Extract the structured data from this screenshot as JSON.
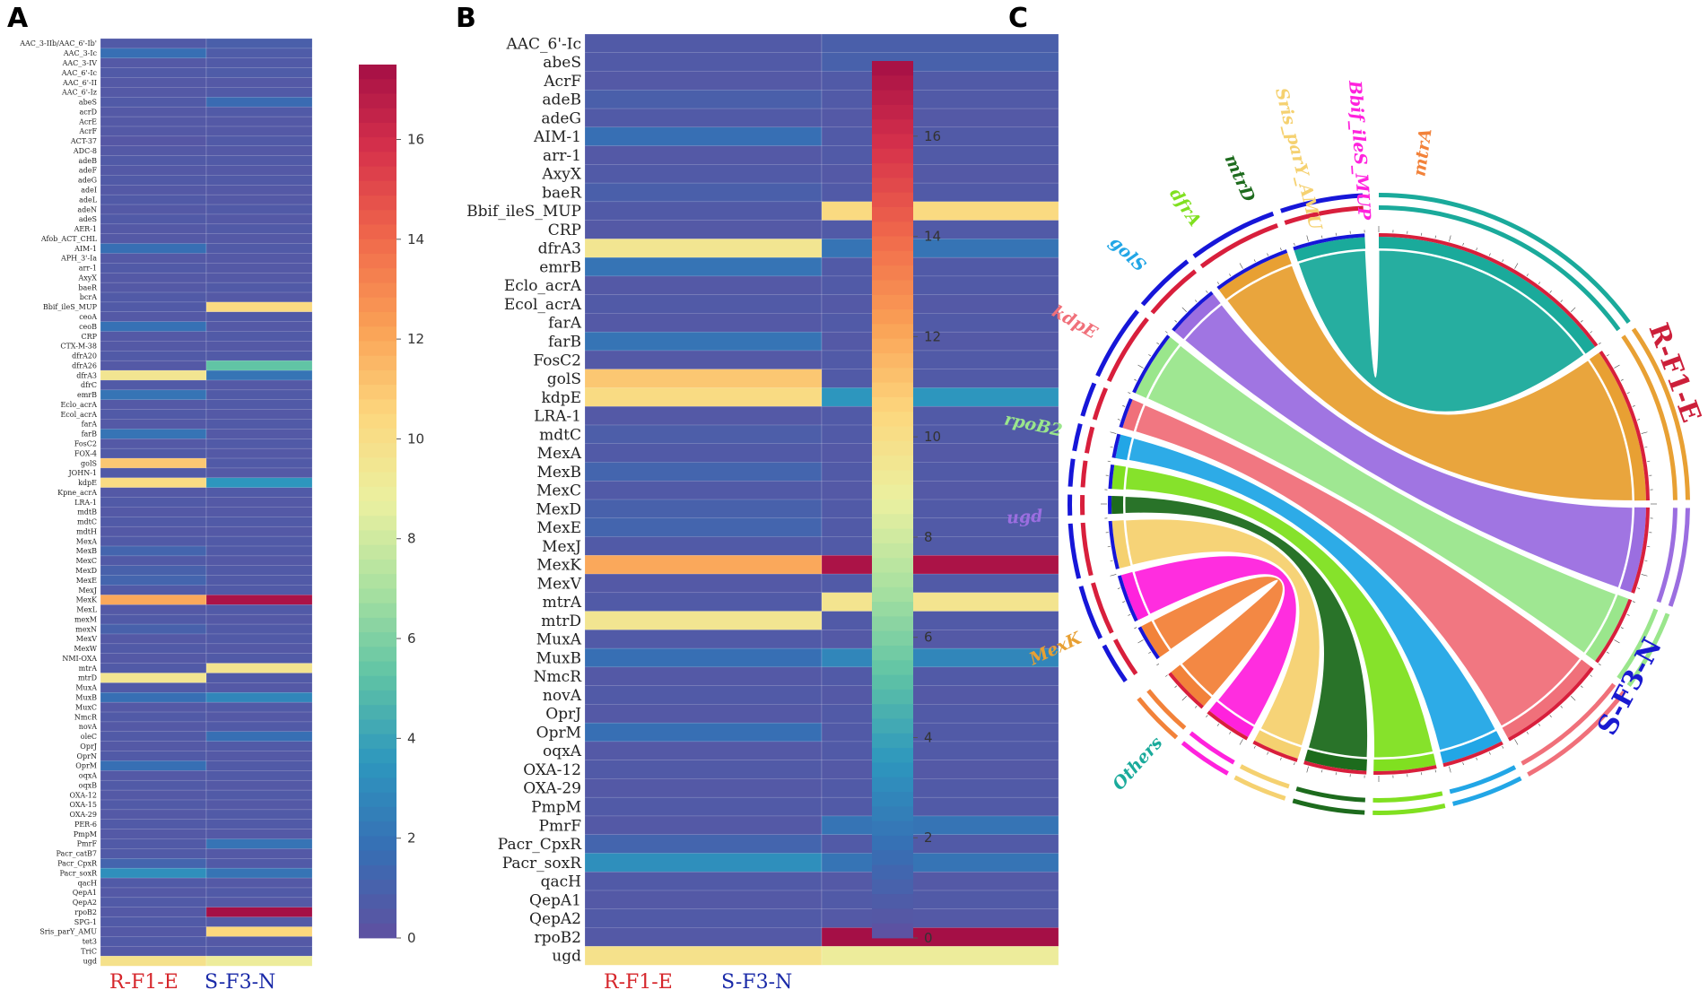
{
  "panels": {
    "a": "A",
    "b": "B",
    "c": "C"
  },
  "samples": [
    "R-F1-E",
    "S-F3-N"
  ],
  "colors": {
    "r_label": "#d6262b",
    "s_label": "#1a2aa8",
    "r_arc": "#d81f3c",
    "s_arc": "#1616d8"
  },
  "colorbar": {
    "min": 0,
    "max": 17.5,
    "ticks": [
      0,
      2,
      4,
      6,
      8,
      10,
      12,
      14,
      16
    ]
  },
  "chart_data": [
    {
      "type": "heatmap",
      "panel": "A",
      "columns": [
        "R-F1-E",
        "S-F3-N"
      ],
      "rows": [
        "AAC_3-IIb/AAC_6'-Ib'",
        "AAC_3-Ic",
        "AAC_3-IV",
        "AAC_6'-Ic",
        "AAC_6'-II",
        "AAC_6'-Iz",
        "abeS",
        "acrD",
        "AcrE",
        "AcrF",
        "ACT-37",
        "ADC-8",
        "adeB",
        "adeF",
        "adeG",
        "adeI",
        "adeL",
        "adeN",
        "adeS",
        "AER-1",
        "Afob_ACT_CHL",
        "AIM-1",
        "APH_3'-Ia",
        "arr-1",
        "AxyX",
        "baeR",
        "bcrA",
        "Bbif_ileS_MUP",
        "ceoA",
        "ceoB",
        "CRP",
        "CTX-M-38",
        "dfrA20",
        "dfrA26",
        "dfrA3",
        "dfrC",
        "emrB",
        "Eclo_acrA",
        "Ecol_acrA",
        "farA",
        "farB",
        "FosC2",
        "FOX-4",
        "golS",
        "JOHN-1",
        "kdpE",
        "Kpne_acrA",
        "LRA-1",
        "mdtB",
        "mdtC",
        "mdtH",
        "MexA",
        "MexB",
        "MexC",
        "MexD",
        "MexE",
        "MexJ",
        "MexK",
        "MexL",
        "mexM",
        "mexN",
        "MexV",
        "MexW",
        "NMI-OXA",
        "mtrA",
        "mtrD",
        "MuxA",
        "MuxB",
        "MuxC",
        "NmcR",
        "novA",
        "oleC",
        "OprJ",
        "OprN",
        "OprM",
        "oqxA",
        "oqxB",
        "OXA-12",
        "OXA-15",
        "OXA-29",
        "PER-6",
        "PmpM",
        "PmrF",
        "Pacr_catB7",
        "Pacr_CpxR",
        "Pacr_soxR",
        "qacH",
        "QepA1",
        "QepA2",
        "rpoB2",
        "SPG-1",
        "Sris_parY_AMU",
        "tet3",
        "TriC",
        "ugd"
      ],
      "values": [
        [
          0.6,
          0.9
        ],
        [
          1.8,
          0.7
        ],
        [
          0.5,
          0.6
        ],
        [
          0.6,
          0.7
        ],
        [
          0.5,
          0.5
        ],
        [
          0.5,
          0.6
        ],
        [
          0.6,
          1.6
        ],
        [
          0.5,
          0.6
        ],
        [
          0.5,
          0.5
        ],
        [
          0.5,
          0.5
        ],
        [
          0.4,
          0.6
        ],
        [
          0.5,
          0.5
        ],
        [
          0.6,
          0.6
        ],
        [
          0.5,
          0.5
        ],
        [
          0.6,
          0.6
        ],
        [
          0.5,
          0.5
        ],
        [
          0.6,
          0.5
        ],
        [
          0.5,
          0.6
        ],
        [
          0.6,
          0.5
        ],
        [
          0.5,
          0.6
        ],
        [
          0.5,
          0.5
        ],
        [
          1.8,
          0.6
        ],
        [
          0.5,
          0.5
        ],
        [
          0.6,
          0.5
        ],
        [
          0.5,
          0.5
        ],
        [
          0.5,
          0.6
        ],
        [
          0.6,
          0.5
        ],
        [
          0.6,
          10.3
        ],
        [
          0.5,
          0.6
        ],
        [
          1.9,
          0.5
        ],
        [
          0.5,
          0.6
        ],
        [
          0.5,
          0.5
        ],
        [
          0.6,
          0.6
        ],
        [
          0.5,
          5.3
        ],
        [
          9.5,
          2.0
        ],
        [
          0.6,
          0.5
        ],
        [
          2.0,
          0.6
        ],
        [
          0.5,
          0.6
        ],
        [
          0.6,
          0.5
        ],
        [
          0.5,
          0.6
        ],
        [
          2.0,
          0.5
        ],
        [
          0.5,
          0.6
        ],
        [
          0.6,
          0.5
        ],
        [
          11.0,
          0.6
        ],
        [
          0.6,
          0.5
        ],
        [
          10.2,
          3.5
        ],
        [
          0.5,
          0.6
        ],
        [
          0.6,
          0.5
        ],
        [
          0.5,
          0.5
        ],
        [
          0.6,
          0.6
        ],
        [
          0.5,
          0.5
        ],
        [
          0.6,
          0.6
        ],
        [
          1.2,
          0.6
        ],
        [
          0.6,
          0.5
        ],
        [
          1.0,
          0.6
        ],
        [
          1.2,
          0.6
        ],
        [
          0.6,
          0.6
        ],
        [
          12.0,
          17.3
        ],
        [
          0.5,
          0.6
        ],
        [
          0.6,
          0.5
        ],
        [
          1.0,
          0.6
        ],
        [
          0.5,
          0.6
        ],
        [
          0.6,
          0.5
        ],
        [
          0.5,
          0.6
        ],
        [
          0.6,
          9.6
        ],
        [
          9.5,
          0.6
        ],
        [
          0.6,
          0.5
        ],
        [
          1.8,
          2.8
        ],
        [
          0.5,
          0.6
        ],
        [
          0.6,
          0.5
        ],
        [
          0.5,
          0.6
        ],
        [
          0.6,
          1.8
        ],
        [
          0.5,
          0.6
        ],
        [
          0.6,
          0.5
        ],
        [
          1.8,
          0.6
        ],
        [
          0.5,
          0.6
        ],
        [
          0.6,
          0.5
        ],
        [
          0.5,
          0.6
        ],
        [
          0.6,
          0.5
        ],
        [
          0.5,
          0.6
        ],
        [
          0.6,
          0.6
        ],
        [
          0.5,
          0.5
        ],
        [
          0.6,
          2.0
        ],
        [
          0.6,
          0.5
        ],
        [
          1.2,
          0.6
        ],
        [
          3.2,
          2.0
        ],
        [
          0.6,
          0.5
        ],
        [
          0.5,
          0.6
        ],
        [
          0.6,
          0.5
        ],
        [
          0.5,
          17.5
        ],
        [
          0.6,
          0.5
        ],
        [
          0.5,
          10.5
        ],
        [
          0.6,
          0.5
        ],
        [
          0.5,
          0.6
        ],
        [
          9.8,
          9.0
        ]
      ]
    },
    {
      "type": "heatmap",
      "panel": "B",
      "columns": [
        "R-F1-E",
        "S-F3-N"
      ],
      "rows": [
        "AAC_6'-Ic",
        "abeS",
        "AcrF",
        "adeB",
        "adeG",
        "AIM-1",
        "arr-1",
        "AxyX",
        "baeR",
        "Bbif_ileS_MUP",
        "CRP",
        "dfrA3",
        "emrB",
        "Eclo_acrA",
        "Ecol_acrA",
        "farA",
        "farB",
        "FosC2",
        "golS",
        "kdpE",
        "LRA-1",
        "mdtC",
        "MexA",
        "MexB",
        "MexC",
        "MexD",
        "MexE",
        "MexJ",
        "MexK",
        "MexV",
        "mtrA",
        "mtrD",
        "MuxA",
        "MuxB",
        "NmcR",
        "novA",
        "OprJ",
        "OprM",
        "oqxA",
        "OXA-12",
        "OXA-29",
        "PmpM",
        "PmrF",
        "Pacr_CpxR",
        "Pacr_soxR",
        "qacH",
        "QepA1",
        "QepA2",
        "rpoB2",
        "ugd"
      ],
      "values": [
        [
          0.6,
          0.9
        ],
        [
          0.6,
          1.0
        ],
        [
          0.5,
          0.6
        ],
        [
          0.9,
          0.6
        ],
        [
          0.6,
          0.5
        ],
        [
          1.8,
          0.6
        ],
        [
          0.5,
          0.6
        ],
        [
          0.6,
          0.5
        ],
        [
          0.9,
          0.6
        ],
        [
          0.6,
          10.3
        ],
        [
          0.5,
          0.6
        ],
        [
          9.5,
          2.0
        ],
        [
          2.0,
          0.6
        ],
        [
          0.5,
          0.6
        ],
        [
          0.6,
          0.5
        ],
        [
          0.5,
          0.6
        ],
        [
          2.0,
          0.5
        ],
        [
          0.5,
          0.6
        ],
        [
          11.0,
          0.6
        ],
        [
          10.2,
          3.5
        ],
        [
          0.5,
          0.6
        ],
        [
          0.8,
          0.6
        ],
        [
          0.6,
          0.5
        ],
        [
          1.2,
          0.6
        ],
        [
          0.6,
          0.5
        ],
        [
          1.0,
          0.6
        ],
        [
          1.2,
          0.6
        ],
        [
          0.6,
          0.6
        ],
        [
          12.0,
          17.3
        ],
        [
          0.5,
          0.6
        ],
        [
          0.6,
          9.6
        ],
        [
          9.5,
          0.6
        ],
        [
          0.6,
          0.5
        ],
        [
          1.8,
          2.8
        ],
        [
          0.5,
          0.6
        ],
        [
          0.6,
          0.5
        ],
        [
          0.5,
          0.6
        ],
        [
          1.8,
          0.6
        ],
        [
          0.5,
          0.6
        ],
        [
          0.6,
          0.5
        ],
        [
          0.5,
          0.6
        ],
        [
          0.6,
          0.6
        ],
        [
          0.5,
          2.0
        ],
        [
          1.2,
          0.6
        ],
        [
          3.2,
          2.0
        ],
        [
          0.6,
          0.5
        ],
        [
          0.5,
          0.6
        ],
        [
          0.6,
          0.5
        ],
        [
          0.5,
          17.5
        ],
        [
          9.8,
          9.0
        ]
      ]
    },
    {
      "type": "chord",
      "panel": "C",
      "groups": [
        "R-F1-E",
        "S-F3-N"
      ],
      "segments": [
        {
          "name": "mtrA",
          "color": "#f2823a",
          "r_value": 30,
          "s_value": 30
        },
        {
          "name": "Bbif_ileS_MUP",
          "color": "#ff22dd",
          "r_value": 30,
          "s_value": 40
        },
        {
          "name": "Sris_parY_AMU",
          "color": "#f5d170",
          "r_value": 30,
          "s_value": 40
        },
        {
          "name": "mtrD",
          "color": "#1d6b1d",
          "r_value": 40,
          "s_value": 15
        },
        {
          "name": "dfrA",
          "color": "#80e020",
          "r_value": 40,
          "s_value": 20
        },
        {
          "name": "golS",
          "color": "#22a6e6",
          "r_value": 40,
          "s_value": 20
        },
        {
          "name": "kdpE",
          "color": "#f0707a",
          "r_value": 70,
          "s_value": 25
        },
        {
          "name": "rpoB2",
          "color": "#9ae68c",
          "r_value": 45,
          "s_value": 55
        },
        {
          "name": "ugd",
          "color": "#9b6ee0",
          "r_value": 55,
          "s_value": 45
        },
        {
          "name": "MexK",
          "color": "#e8a033",
          "r_value": 100,
          "s_value": 65
        },
        {
          "name": "Others",
          "color": "#1aaa9b",
          "r_value": 160,
          "s_value": 60
        }
      ]
    }
  ]
}
